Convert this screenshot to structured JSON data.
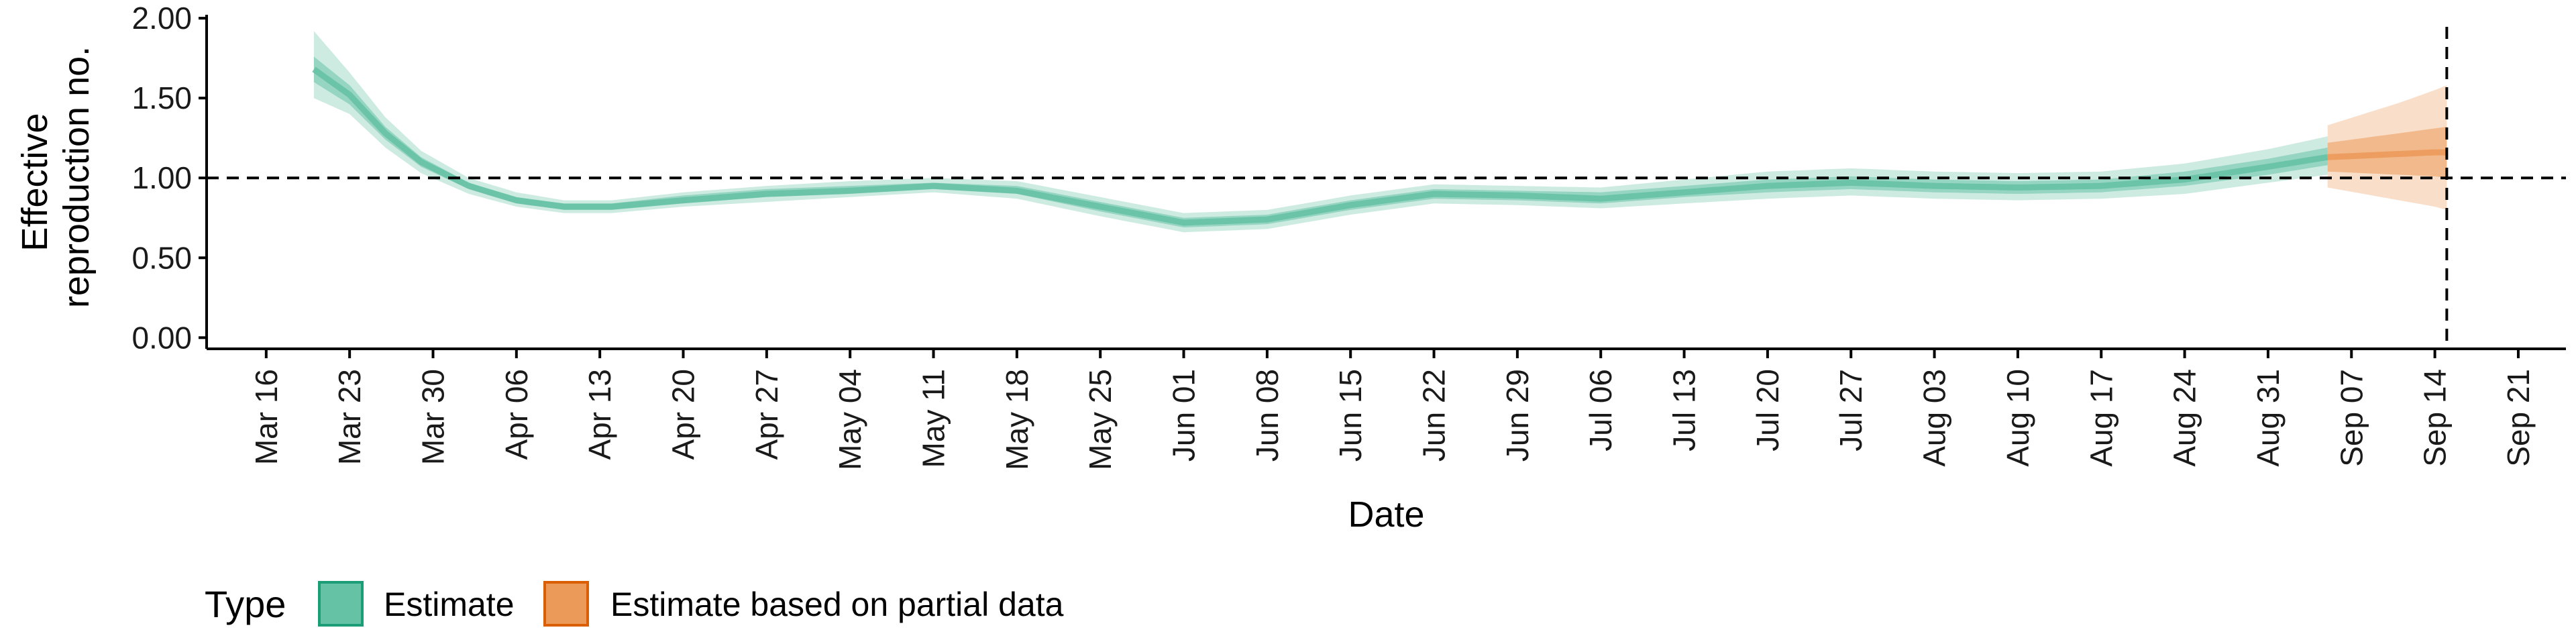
{
  "chart_data": {
    "type": "area",
    "title": "",
    "xlabel": "Date",
    "ylabel_lines": [
      "Effective",
      "reproduction no."
    ],
    "x_tick_labels": [
      "Mar 16",
      "Mar 23",
      "Mar 30",
      "Apr 06",
      "Apr 13",
      "Apr 20",
      "Apr 27",
      "May 04",
      "May 11",
      "May 18",
      "May 25",
      "Jun 01",
      "Jun 08",
      "Jun 15",
      "Jun 22",
      "Jun 29",
      "Jul 06",
      "Jul 13",
      "Jul 20",
      "Jul 27",
      "Aug 03",
      "Aug 10",
      "Aug 17",
      "Aug 24",
      "Aug 31",
      "Sep 07",
      "Sep 14",
      "Sep 21"
    ],
    "x_tick_dates": [
      "2020-03-16",
      "2020-03-23",
      "2020-03-30",
      "2020-04-06",
      "2020-04-13",
      "2020-04-20",
      "2020-04-27",
      "2020-05-04",
      "2020-05-11",
      "2020-05-18",
      "2020-05-25",
      "2020-06-01",
      "2020-06-08",
      "2020-06-15",
      "2020-06-22",
      "2020-06-29",
      "2020-07-06",
      "2020-07-13",
      "2020-07-20",
      "2020-07-27",
      "2020-08-03",
      "2020-08-10",
      "2020-08-17",
      "2020-08-24",
      "2020-08-31",
      "2020-09-07",
      "2020-09-14",
      "2020-09-21"
    ],
    "xlim": [
      "2020-03-11",
      "2020-09-25"
    ],
    "y_tick_labels": [
      "0.00",
      "0.50",
      "1.00",
      "1.50",
      "2.00"
    ],
    "y_ticks": [
      0,
      0.5,
      1,
      1.5,
      2
    ],
    "ylim": [
      -0.07,
      2.03
    ],
    "reference_hline": 1.0,
    "reference_vline": "2020-09-15",
    "grid": false,
    "legend": {
      "position": "bottom-left",
      "title": "Type",
      "entries": [
        {
          "label": "Estimate",
          "fill": "#66c2a5",
          "stroke": "#1b9e77"
        },
        {
          "label": "Estimate based on partial data",
          "fill": "#ec9a5a",
          "stroke": "#d95f02"
        }
      ]
    },
    "series": [
      {
        "name": "Estimate",
        "fill_color": "#66c2a5",
        "points": [
          {
            "date": "2020-03-20",
            "median": 1.68,
            "lower50": 1.6,
            "upper50": 1.76,
            "lower90": 1.5,
            "upper90": 1.92
          },
          {
            "date": "2020-03-23",
            "median": 1.52,
            "lower50": 1.46,
            "upper50": 1.58,
            "lower90": 1.4,
            "upper90": 1.66
          },
          {
            "date": "2020-03-26",
            "median": 1.28,
            "lower50": 1.24,
            "upper50": 1.32,
            "lower90": 1.19,
            "upper90": 1.38
          },
          {
            "date": "2020-03-29",
            "median": 1.1,
            "lower50": 1.07,
            "upper50": 1.13,
            "lower90": 1.03,
            "upper90": 1.17
          },
          {
            "date": "2020-04-02",
            "median": 0.95,
            "lower50": 0.93,
            "upper50": 0.97,
            "lower90": 0.9,
            "upper90": 1.0
          },
          {
            "date": "2020-04-06",
            "median": 0.86,
            "lower50": 0.84,
            "upper50": 0.88,
            "lower90": 0.82,
            "upper90": 0.91
          },
          {
            "date": "2020-04-10",
            "median": 0.82,
            "lower50": 0.8,
            "upper50": 0.84,
            "lower90": 0.78,
            "upper90": 0.86
          },
          {
            "date": "2020-04-14",
            "median": 0.82,
            "lower50": 0.8,
            "upper50": 0.84,
            "lower90": 0.78,
            "upper90": 0.86
          },
          {
            "date": "2020-04-20",
            "median": 0.86,
            "lower50": 0.84,
            "upper50": 0.89,
            "lower90": 0.82,
            "upper90": 0.91
          },
          {
            "date": "2020-04-27",
            "median": 0.9,
            "lower50": 0.88,
            "upper50": 0.93,
            "lower90": 0.85,
            "upper90": 0.95
          },
          {
            "date": "2020-05-04",
            "median": 0.92,
            "lower50": 0.9,
            "upper50": 0.95,
            "lower90": 0.88,
            "upper90": 0.98
          },
          {
            "date": "2020-05-11",
            "median": 0.95,
            "lower50": 0.93,
            "upper50": 0.97,
            "lower90": 0.91,
            "upper90": 1.0
          },
          {
            "date": "2020-05-18",
            "median": 0.92,
            "lower50": 0.9,
            "upper50": 0.95,
            "lower90": 0.87,
            "upper90": 0.98
          },
          {
            "date": "2020-05-25",
            "median": 0.82,
            "lower50": 0.79,
            "upper50": 0.85,
            "lower90": 0.76,
            "upper90": 0.88
          },
          {
            "date": "2020-06-01",
            "median": 0.72,
            "lower50": 0.69,
            "upper50": 0.75,
            "lower90": 0.66,
            "upper90": 0.78
          },
          {
            "date": "2020-06-08",
            "median": 0.74,
            "lower50": 0.71,
            "upper50": 0.77,
            "lower90": 0.68,
            "upper90": 0.8
          },
          {
            "date": "2020-06-15",
            "median": 0.83,
            "lower50": 0.8,
            "upper50": 0.86,
            "lower90": 0.77,
            "upper90": 0.89
          },
          {
            "date": "2020-06-22",
            "median": 0.9,
            "lower50": 0.87,
            "upper50": 0.93,
            "lower90": 0.84,
            "upper90": 0.96
          },
          {
            "date": "2020-06-29",
            "median": 0.89,
            "lower50": 0.86,
            "upper50": 0.92,
            "lower90": 0.83,
            "upper90": 0.95
          },
          {
            "date": "2020-07-06",
            "median": 0.87,
            "lower50": 0.84,
            "upper50": 0.91,
            "lower90": 0.81,
            "upper90": 0.94
          },
          {
            "date": "2020-07-13",
            "median": 0.91,
            "lower50": 0.88,
            "upper50": 0.95,
            "lower90": 0.84,
            "upper90": 0.99
          },
          {
            "date": "2020-07-20",
            "median": 0.95,
            "lower50": 0.91,
            "upper50": 0.99,
            "lower90": 0.87,
            "upper90": 1.04
          },
          {
            "date": "2020-07-27",
            "median": 0.97,
            "lower50": 0.93,
            "upper50": 1.01,
            "lower90": 0.89,
            "upper90": 1.06
          },
          {
            "date": "2020-08-03",
            "median": 0.95,
            "lower50": 0.91,
            "upper50": 0.99,
            "lower90": 0.87,
            "upper90": 1.04
          },
          {
            "date": "2020-08-10",
            "median": 0.94,
            "lower50": 0.9,
            "upper50": 0.98,
            "lower90": 0.86,
            "upper90": 1.03
          },
          {
            "date": "2020-08-17",
            "median": 0.95,
            "lower50": 0.91,
            "upper50": 0.99,
            "lower90": 0.87,
            "upper90": 1.04
          },
          {
            "date": "2020-08-24",
            "median": 0.99,
            "lower50": 0.95,
            "upper50": 1.04,
            "lower90": 0.9,
            "upper90": 1.09
          },
          {
            "date": "2020-08-31",
            "median": 1.07,
            "lower50": 1.02,
            "upper50": 1.12,
            "lower90": 0.97,
            "upper90": 1.18
          },
          {
            "date": "2020-09-05",
            "median": 1.13,
            "lower50": 1.08,
            "upper50": 1.19,
            "lower90": 1.02,
            "upper90": 1.26
          }
        ]
      },
      {
        "name": "Estimate based on partial data",
        "fill_color": "#ec9a5a",
        "points": [
          {
            "date": "2020-09-05",
            "median": 1.13,
            "lower50": 1.04,
            "upper50": 1.22,
            "lower90": 0.94,
            "upper90": 1.33
          },
          {
            "date": "2020-09-08",
            "median": 1.14,
            "lower50": 1.03,
            "upper50": 1.25,
            "lower90": 0.9,
            "upper90": 1.4
          },
          {
            "date": "2020-09-11",
            "median": 1.15,
            "lower50": 1.02,
            "upper50": 1.28,
            "lower90": 0.86,
            "upper90": 1.47
          },
          {
            "date": "2020-09-14",
            "median": 1.16,
            "lower50": 1.01,
            "upper50": 1.31,
            "lower90": 0.82,
            "upper90": 1.55
          },
          {
            "date": "2020-09-15",
            "median": 1.16,
            "lower50": 1.0,
            "upper50": 1.32,
            "lower90": 0.8,
            "upper90": 1.58
          }
        ]
      }
    ]
  }
}
